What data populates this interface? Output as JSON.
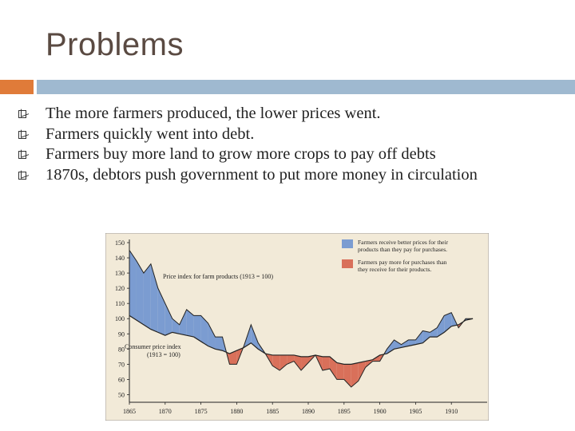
{
  "slide": {
    "title": "Problems",
    "bullets": [
      "The more farmers produced, the lower prices went.",
      "Farmers quickly went into debt.",
      "Farmers buy more land to grow more crops to pay off debts",
      "1870s, debtors push government to put more money in circulation"
    ]
  },
  "colors": {
    "title": "#5a4a42",
    "accent_orange": "#e07b39",
    "accent_blue": "#9fb9d0",
    "chart_bg": "#f2ead8",
    "farm_above": "#7b9cd1",
    "farm_below": "#d9705a"
  },
  "chart_data": {
    "type": "area",
    "ylim": [
      45,
      150
    ],
    "xlim": [
      1865,
      1915
    ],
    "yticks": [
      150,
      140,
      130,
      120,
      110,
      100,
      90,
      80,
      70,
      60,
      50
    ],
    "xticks": [
      1865,
      1870,
      1875,
      1880,
      1885,
      1890,
      1895,
      1900,
      1905,
      1910
    ],
    "legend": [
      {
        "text": "Farmers receive better prices for their products than they pay for purchases.",
        "color": "#7b9cd1"
      },
      {
        "text": "Farmers pay more for purchases than they receive for their products.",
        "color": "#d9705a"
      }
    ],
    "series_labels": {
      "farm": "Price index for farm products (1913 = 100)",
      "consumer_line1": "Consumer price index",
      "consumer_line2": "(1913 = 100)"
    },
    "x": [
      1865,
      1866,
      1867,
      1868,
      1869,
      1870,
      1871,
      1872,
      1873,
      1874,
      1875,
      1876,
      1877,
      1878,
      1879,
      1880,
      1881,
      1882,
      1883,
      1884,
      1885,
      1886,
      1887,
      1888,
      1889,
      1890,
      1891,
      1892,
      1893,
      1894,
      1895,
      1896,
      1897,
      1898,
      1899,
      1900,
      1901,
      1902,
      1903,
      1904,
      1905,
      1906,
      1907,
      1908,
      1909,
      1910,
      1911,
      1912,
      1913
    ],
    "farm": [
      145,
      138,
      130,
      136,
      120,
      110,
      100,
      96,
      106,
      102,
      102,
      97,
      88,
      88,
      70,
      70,
      82,
      96,
      84,
      77,
      69,
      66,
      70,
      72,
      66,
      71,
      76,
      66,
      67,
      60,
      60,
      55,
      59,
      68,
      72,
      72,
      80,
      86,
      83,
      86,
      86,
      92,
      91,
      94,
      102,
      104,
      94,
      100,
      100
    ],
    "consumer": [
      102,
      99,
      96,
      93,
      91,
      89,
      91,
      90,
      89,
      88,
      85,
      82,
      80,
      79,
      77,
      79,
      81,
      84,
      80,
      77,
      76,
      76,
      76,
      76,
      75,
      75,
      76,
      75,
      75,
      71,
      70,
      70,
      71,
      72,
      73,
      76,
      77,
      80,
      81,
      82,
      83,
      84,
      88,
      88,
      91,
      95,
      96,
      99,
      100
    ]
  }
}
